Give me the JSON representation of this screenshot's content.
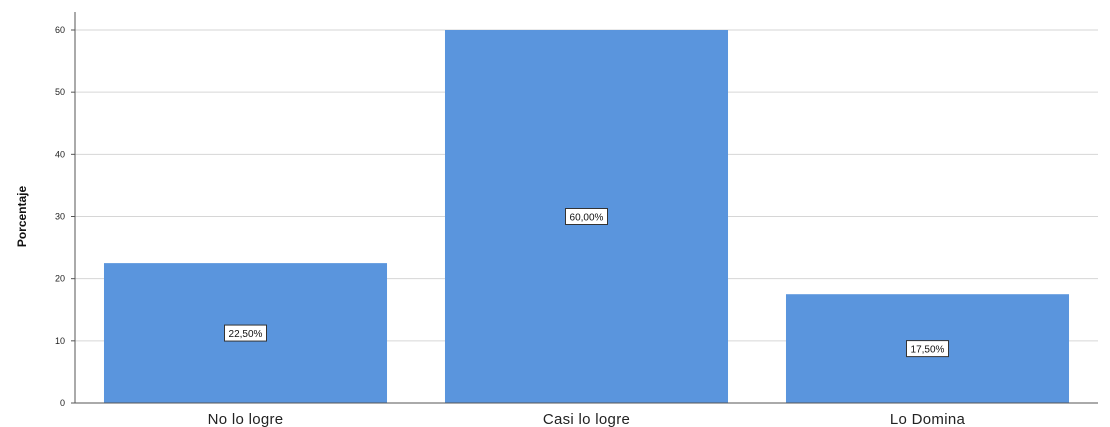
{
  "chart_data": {
    "type": "bar",
    "ylabel": "Porcentaje",
    "xlabel": "",
    "categories": [
      "No lo logre",
      "Casi lo logre",
      "Lo Domina"
    ],
    "values": [
      22.5,
      60.0,
      17.5
    ],
    "data_labels": [
      "22,50%",
      "60,00%",
      "17,50%"
    ],
    "ylim": [
      0,
      60
    ],
    "yticks": [
      0,
      10,
      20,
      30,
      40,
      50,
      60
    ],
    "ytick_labels": [
      "0",
      "10",
      "20",
      "30",
      "40",
      "50",
      "60"
    ],
    "grid": true,
    "bar_color": "#5a95dd",
    "grid_color": "#d6d6d6"
  }
}
